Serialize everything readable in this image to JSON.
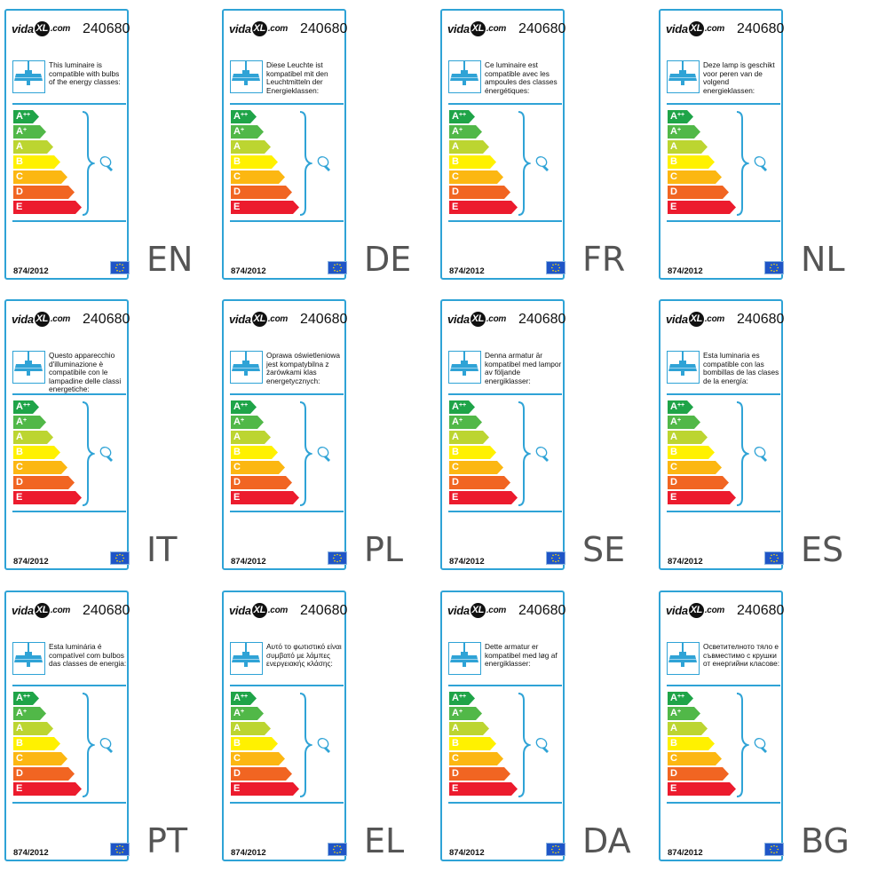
{
  "brand": {
    "name": "vida",
    "mark": "XL",
    "suffix": ".com"
  },
  "product_code": "240680",
  "regulation": "874/2012",
  "classes": [
    {
      "letter": "A",
      "sup": "++",
      "color": "#1fa448"
    },
    {
      "letter": "A",
      "sup": "+",
      "color": "#51b848"
    },
    {
      "letter": "A",
      "sup": "",
      "color": "#bcd531"
    },
    {
      "letter": "B",
      "sup": "",
      "color": "#fff100"
    },
    {
      "letter": "C",
      "sup": "",
      "color": "#fcb712"
    },
    {
      "letter": "D",
      "sup": "",
      "color": "#f16522"
    },
    {
      "letter": "E",
      "sup": "",
      "color": "#ec1b2d"
    }
  ],
  "accent_color": "#2fa3d6",
  "icons": [
    "lamp-icon",
    "bulb-icon",
    "eu-flag-icon"
  ],
  "labels": [
    {
      "lang": "EN",
      "text": "This luminaire is compatible with bulbs of the energy classes:"
    },
    {
      "lang": "DE",
      "text": "Diese Leuchte ist kompatibel mit den Leuchtmitteln der Energieklassen:"
    },
    {
      "lang": "FR",
      "text": "Ce luminaire est compatible avec les ampoules des classes énergétiques:"
    },
    {
      "lang": "NL",
      "text": "Deze lamp is geschikt voor peren van de volgend energieklassen:"
    },
    {
      "lang": "IT",
      "text": "Questo apparecchio d'illuminazione è compatibile con le lampadine delle classi energetiche:"
    },
    {
      "lang": "PL",
      "text": "Oprawa oświetleniowa jest kompatybilna z żarówkami klas energetycznych:"
    },
    {
      "lang": "SE",
      "text": "Denna armatur är kompatibel med lampor av följande energiklasser:"
    },
    {
      "lang": "ES",
      "text": "Esta luminaria es compatible con las bombillas de las clases de la energía:"
    },
    {
      "lang": "PT",
      "text": "Esta luminária é compatível com bulbos das classes de energia:"
    },
    {
      "lang": "EL",
      "text": "Αυτό το φωτιστικό είναι συμβατό με λάμπες ενεργειακής κλάσης:"
    },
    {
      "lang": "DA",
      "text": "Dette armatur er kompatibel med løg af energiklasser:"
    },
    {
      "lang": "BG",
      "text": "Осветителното тяло е съвместимо с крушки от енергийни класове:"
    }
  ]
}
